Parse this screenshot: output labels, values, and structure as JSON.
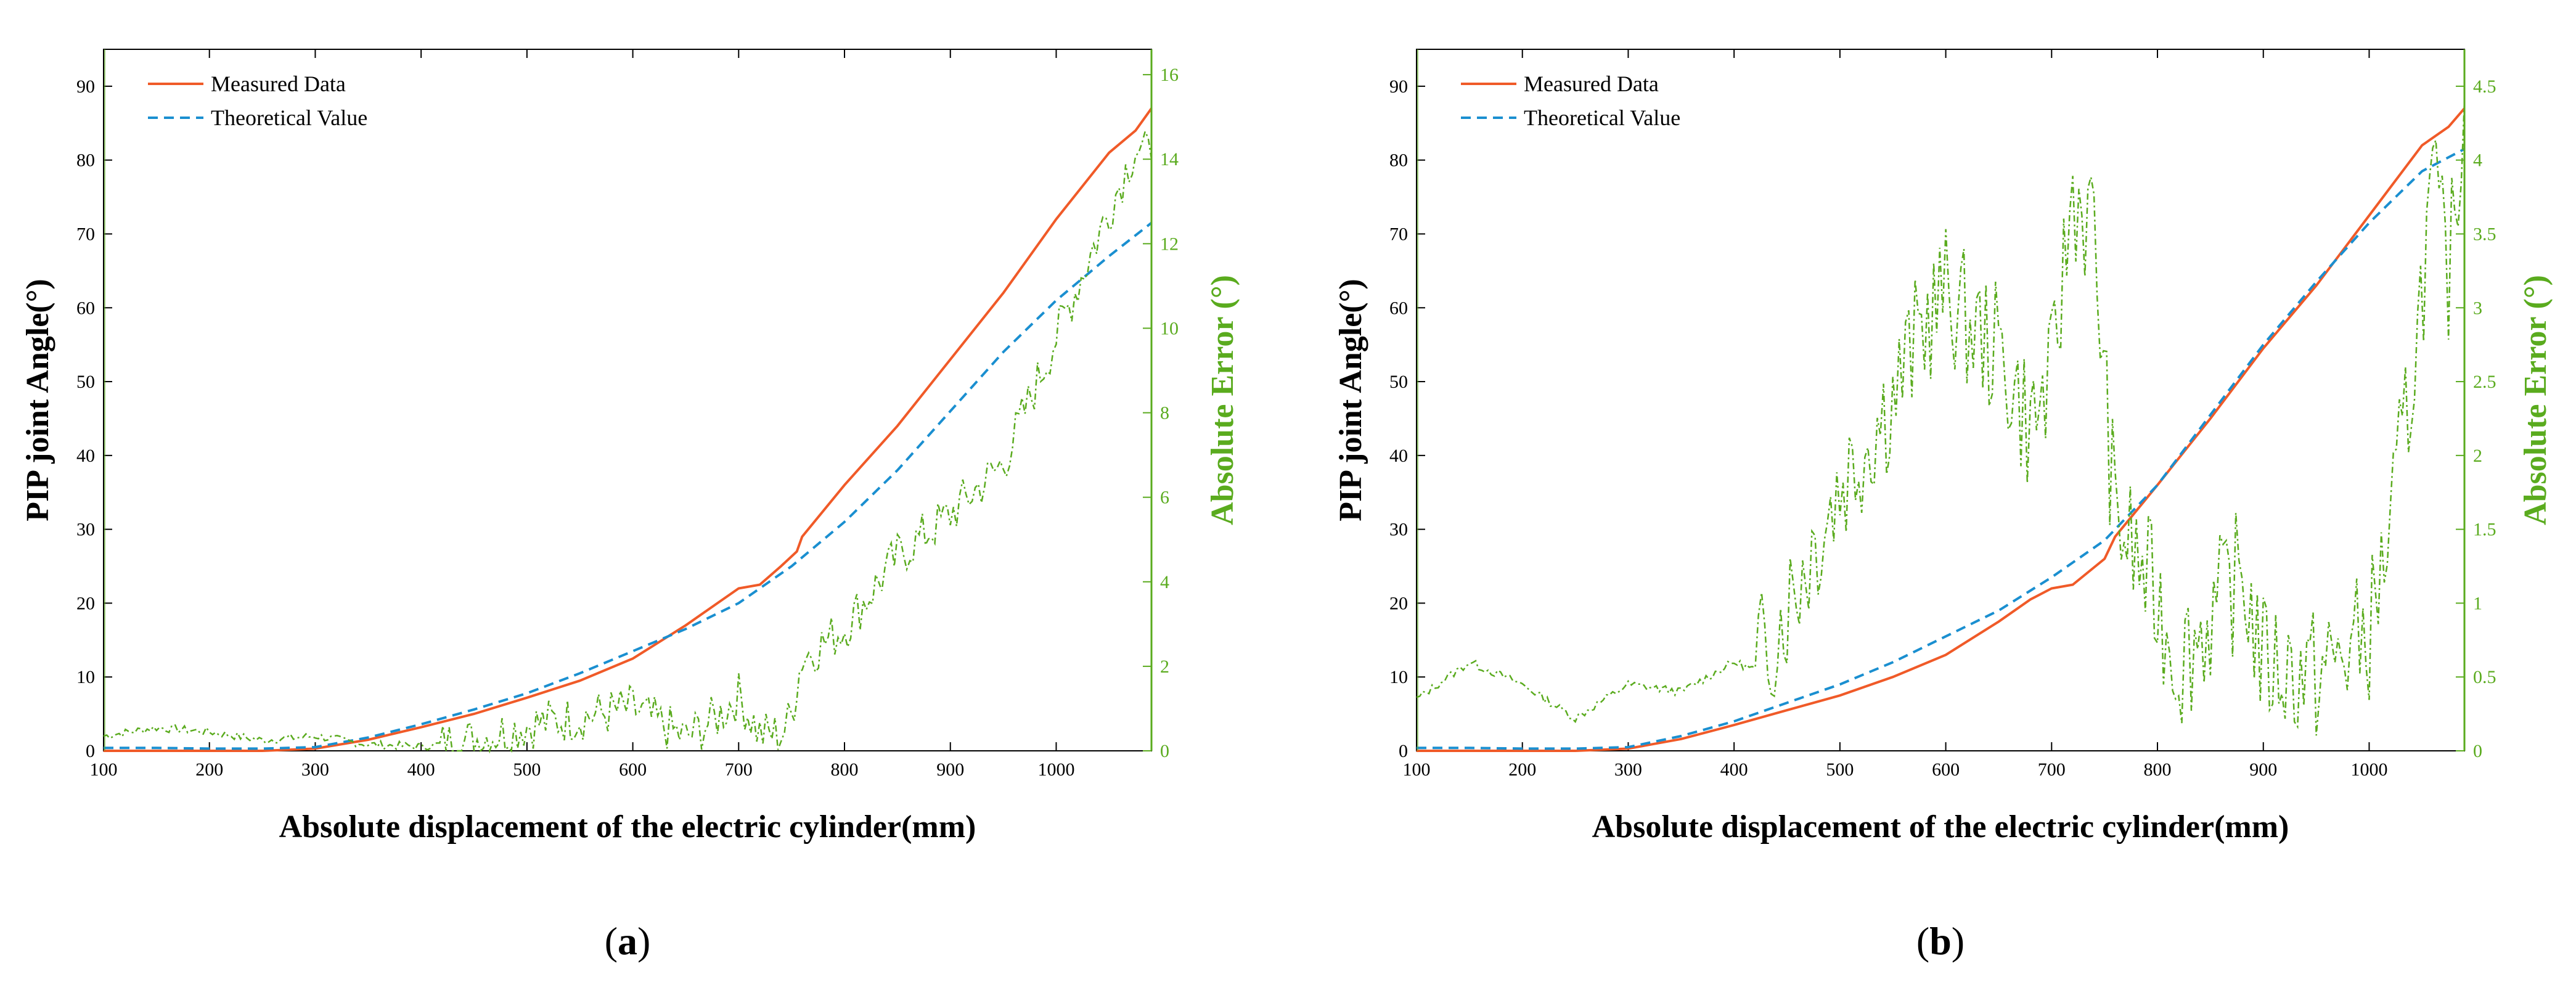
{
  "chart_data": [
    {
      "type": "line",
      "panel_label": "a",
      "xlabel": "Absolute displacement of the electric cylinder(mm)",
      "ylabel": "PIP joint Angle(°)",
      "y2label": "Absolute Error (°)",
      "xlim": [
        100,
        1090
      ],
      "ylim": [
        0,
        95
      ],
      "y2lim": [
        0,
        16.6
      ],
      "xticks": [
        100,
        200,
        300,
        400,
        500,
        600,
        700,
        800,
        900,
        1000
      ],
      "yticks": [
        0,
        10,
        20,
        30,
        40,
        50,
        60,
        70,
        80,
        90
      ],
      "y2ticks": [
        0,
        2,
        4,
        6,
        8,
        10,
        12,
        14,
        16
      ],
      "legend_position": "top-left",
      "colors": {
        "measured": "#f05a28",
        "theoretical": "#1a8fd0",
        "error": "#5aab1e"
      },
      "series": [
        {
          "name": "Measured Data",
          "axis": "left",
          "style": "solid",
          "x": [
            100,
            150,
            200,
            250,
            300,
            350,
            400,
            450,
            500,
            550,
            600,
            650,
            680,
            700,
            720,
            740,
            755,
            760,
            800,
            850,
            900,
            950,
            1000,
            1050,
            1075,
            1090
          ],
          "y": [
            0,
            0,
            0,
            0,
            0.3,
            1.5,
            3.2,
            5.0,
            7.2,
            9.5,
            12.5,
            17.0,
            20.0,
            22.0,
            22.5,
            25.0,
            27.0,
            29.0,
            36.0,
            44.0,
            53.0,
            62.0,
            72.0,
            81.0,
            84.0,
            87.0
          ]
        },
        {
          "name": "Theoretical Value",
          "axis": "left",
          "style": "dashed",
          "x": [
            100,
            150,
            200,
            250,
            300,
            350,
            400,
            450,
            500,
            550,
            600,
            650,
            700,
            750,
            800,
            850,
            900,
            950,
            1000,
            1050,
            1090
          ],
          "y": [
            0.4,
            0.4,
            0.3,
            0.3,
            0.5,
            1.8,
            3.6,
            5.6,
            7.8,
            10.5,
            13.5,
            16.5,
            20.0,
            25.0,
            31.0,
            38.0,
            46.0,
            54.0,
            61.0,
            67.0,
            71.5
          ]
        },
        {
          "name": "Absolute Error",
          "axis": "right",
          "style": "dashdot",
          "x": [
            100,
            150,
            200,
            250,
            300,
            350,
            400,
            450,
            500,
            550,
            600,
            650,
            680,
            700,
            720,
            740,
            750,
            755,
            760,
            800,
            850,
            900,
            950,
            1000,
            1050,
            1075,
            1090
          ],
          "y": [
            0.35,
            0.55,
            0.45,
            0.25,
            0.35,
            0.15,
            0.1,
            0.25,
            0.6,
            0.8,
            1.0,
            0.3,
            0.8,
            1.3,
            0.4,
            0.4,
            0.8,
            1.6,
            2.2,
            2.9,
            4.6,
            5.6,
            6.8,
            9.8,
            12.8,
            14.3,
            14.0
          ]
        }
      ]
    },
    {
      "type": "line",
      "panel_label": "b",
      "xlabel": "Absolute displacement of the electric cylinder(mm)",
      "ylabel": "PIP joint Angle(°)",
      "y2label": "Absolute Error (°)",
      "xlim": [
        100,
        1090
      ],
      "ylim": [
        0,
        95
      ],
      "y2lim": [
        0,
        4.75
      ],
      "xticks": [
        100,
        200,
        300,
        400,
        500,
        600,
        700,
        800,
        900,
        1000
      ],
      "yticks": [
        0,
        10,
        20,
        30,
        40,
        50,
        60,
        70,
        80,
        90
      ],
      "y2ticks": [
        0,
        0.5,
        1,
        1.5,
        2,
        2.5,
        3,
        3.5,
        4,
        4.5
      ],
      "legend_position": "top-left",
      "colors": {
        "measured": "#f05a28",
        "theoretical": "#1a8fd0",
        "error": "#5aab1e"
      },
      "series": [
        {
          "name": "Measured Data",
          "axis": "left",
          "style": "solid",
          "x": [
            100,
            150,
            200,
            250,
            300,
            350,
            400,
            450,
            500,
            550,
            600,
            650,
            680,
            700,
            720,
            750,
            760,
            800,
            850,
            900,
            950,
            1000,
            1050,
            1075,
            1090
          ],
          "y": [
            0,
            0,
            0,
            0,
            0.3,
            1.6,
            3.5,
            5.5,
            7.5,
            10.0,
            13.0,
            17.5,
            20.5,
            22.0,
            22.5,
            26.0,
            29.0,
            36.0,
            45.0,
            54.5,
            63.0,
            72.5,
            82.0,
            84.5,
            87.0
          ]
        },
        {
          "name": "Theoretical Value",
          "axis": "left",
          "style": "dashed",
          "x": [
            100,
            150,
            200,
            250,
            300,
            350,
            400,
            450,
            500,
            550,
            600,
            650,
            700,
            750,
            800,
            850,
            900,
            950,
            1000,
            1050,
            1090
          ],
          "y": [
            0.4,
            0.4,
            0.3,
            0.3,
            0.5,
            2.0,
            4.0,
            6.5,
            9.0,
            12.0,
            15.5,
            19.0,
            23.5,
            28.5,
            36.0,
            45.5,
            55.0,
            63.5,
            71.5,
            78.5,
            81.5
          ]
        },
        {
          "name": "Absolute Error",
          "axis": "right",
          "style": "dashdot",
          "x": [
            100,
            150,
            200,
            250,
            300,
            350,
            400,
            420,
            450,
            500,
            550,
            580,
            600,
            620,
            650,
            680,
            700,
            720,
            740,
            755,
            760,
            780,
            800,
            820,
            850,
            880,
            900,
            950,
            1000,
            1020,
            1040,
            1060,
            1075,
            1090
          ],
          "y": [
            0.35,
            0.6,
            0.45,
            0.22,
            0.45,
            0.4,
            0.6,
            0.55,
            1.0,
            1.8,
            2.4,
            2.9,
            3.1,
            2.9,
            2.7,
            2.2,
            2.5,
            3.8,
            3.5,
            2.0,
            1.6,
            1.3,
            1.0,
            0.6,
            0.9,
            1.2,
            0.6,
            0.5,
            0.8,
            1.5,
            2.5,
            3.8,
            3.2,
            4.4
          ]
        }
      ]
    }
  ],
  "panels": {
    "a": {
      "caption": "a",
      "legend": [
        "Measured Data",
        "Theoretical Value"
      ]
    },
    "b": {
      "caption": "b",
      "legend": [
        "Measured Data",
        "Theoretical Value"
      ]
    }
  }
}
